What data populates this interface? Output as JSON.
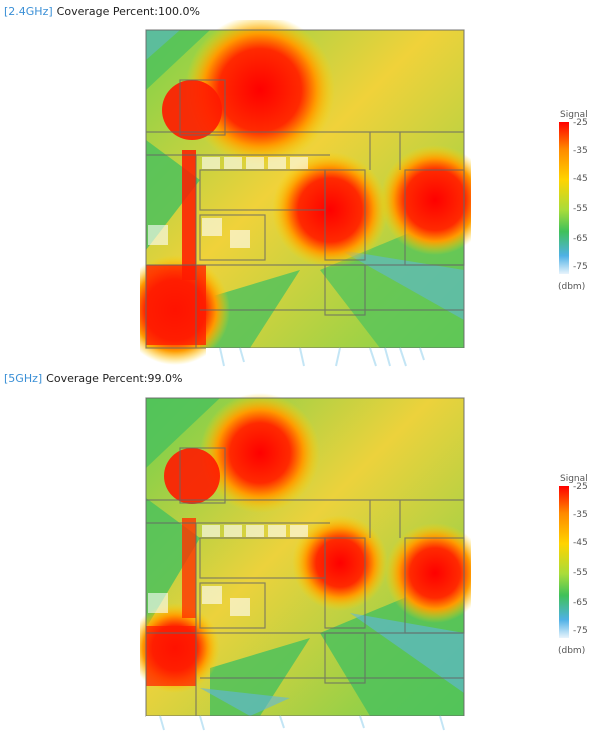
{
  "sections": [
    {
      "band": "[2.4GHz]",
      "coverage": "Coverage Percent:100.0%"
    },
    {
      "band": "[5GHz]",
      "coverage": "Coverage Percent:99.0%"
    }
  ],
  "legend": {
    "title": "Signal",
    "ticks": [
      "-25",
      "-35",
      "-45",
      "-55",
      "-65",
      "-75"
    ],
    "unit": "(dbm)"
  },
  "colors": {
    "band_tag": "#3a8fd6",
    "strong": "#ff0000",
    "mid": "#ffd400",
    "weak": "#3fc15a",
    "very_weak": "#4fb1e6"
  }
}
